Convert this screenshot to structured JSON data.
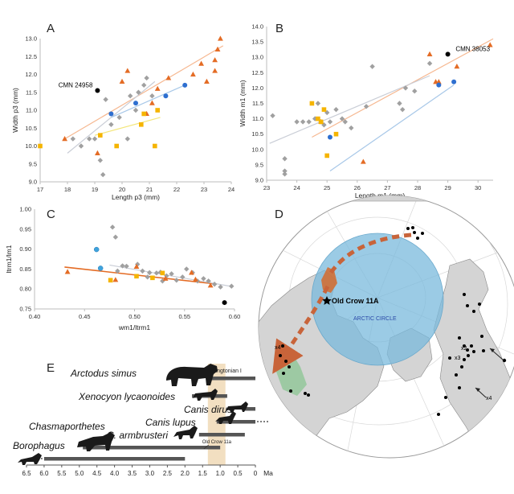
{
  "panels": {
    "A": "A",
    "B": "B",
    "C": "C",
    "D": "D",
    "E": "E"
  },
  "colors": {
    "grey": "#a0a0a0",
    "orange": "#e46c25",
    "yellow": "#f5b400",
    "blue": "#2e6fd0",
    "lightblue": "#3fa3dc",
    "black": "#000000",
    "trend_orange": "#f6b891",
    "trend_grey": "#c9cdd6",
    "trend_yellow": "#f3e67a",
    "trend_blue": "#a8c8e8",
    "bar": "#555555",
    "band": "#f2dfc1",
    "arctic": "#79b9dc",
    "land": "#d4d4d4",
    "ocean": "#ffffff",
    "green_region": "#93c79a",
    "arrow": "#c8643a"
  },
  "chart_data": [
    {
      "id": "A",
      "type": "scatter",
      "title": "A",
      "xlabel": "Length p3 (mm)",
      "ylabel": "Width p3 (mm)",
      "xlim": [
        17,
        24
      ],
      "ylim": [
        9.0,
        13.0
      ],
      "xticks": [
        "17",
        "18",
        "19",
        "20",
        "21",
        "22",
        "23",
        "24"
      ],
      "yticks": [
        "9.0",
        "9.5",
        "10.0",
        "10.5",
        "11.0",
        "11.5",
        "12.0",
        "12.5",
        "13.0"
      ],
      "annotations": [
        {
          "text": "CMN 24958",
          "x": 19.1,
          "y": 11.55
        }
      ],
      "series": [
        {
          "name": "grey",
          "marker": "diamond",
          "color": "grey",
          "points": [
            [
              18.2,
              10.2
            ],
            [
              18.5,
              10.0
            ],
            [
              18.8,
              10.2
            ],
            [
              19.0,
              10.2
            ],
            [
              19.2,
              9.6
            ],
            [
              19.3,
              9.2
            ],
            [
              19.4,
              11.3
            ],
            [
              19.6,
              10.6
            ],
            [
              19.9,
              10.8
            ],
            [
              20.3,
              11.4
            ],
            [
              20.5,
              11.0
            ],
            [
              20.6,
              11.5
            ],
            [
              20.8,
              11.7
            ],
            [
              20.9,
              11.9
            ],
            [
              21.1,
              11.4
            ],
            [
              20.2,
              10.2
            ]
          ]
        },
        {
          "name": "orange",
          "marker": "triangle",
          "color": "orange",
          "points": [
            [
              17.9,
              10.2
            ],
            [
              19.1,
              9.8
            ],
            [
              20.0,
              11.8
            ],
            [
              20.2,
              12.1
            ],
            [
              20.9,
              10.9
            ],
            [
              21.3,
              11.6
            ],
            [
              21.7,
              11.9
            ],
            [
              22.6,
              12.0
            ],
            [
              22.9,
              12.3
            ],
            [
              23.1,
              11.8
            ],
            [
              23.4,
              12.4
            ],
            [
              23.5,
              12.7
            ],
            [
              23.4,
              12.1
            ],
            [
              23.6,
              13.0
            ],
            [
              21.1,
              11.2
            ]
          ]
        },
        {
          "name": "yellow",
          "marker": "square",
          "color": "yellow",
          "points": [
            [
              17.0,
              10.0
            ],
            [
              19.2,
              10.3
            ],
            [
              19.8,
              10.0
            ],
            [
              20.7,
              10.6
            ],
            [
              20.8,
              10.9
            ],
            [
              21.2,
              10.0
            ],
            [
              21.3,
              11.0
            ]
          ]
        },
        {
          "name": "blue",
          "marker": "circle",
          "color": "blue",
          "points": [
            [
              19.6,
              10.9
            ],
            [
              20.5,
              11.2
            ],
            [
              21.6,
              11.4
            ],
            [
              22.3,
              11.7
            ]
          ]
        },
        {
          "name": "black",
          "marker": "circle",
          "color": "black",
          "points": [
            [
              19.1,
              11.55
            ]
          ]
        }
      ],
      "trendlines": [
        {
          "color": "trend_orange",
          "from": [
            17.9,
            10.2
          ],
          "to": [
            23.7,
            12.8
          ]
        },
        {
          "color": "trend_grey",
          "from": [
            18.0,
            9.8
          ],
          "to": [
            21.2,
            11.8
          ]
        },
        {
          "color": "trend_yellow",
          "from": [
            19.0,
            10.3
          ],
          "to": [
            21.4,
            10.8
          ]
        },
        {
          "color": "trend_blue",
          "from": [
            19.6,
            10.8
          ],
          "to": [
            22.3,
            11.7
          ]
        }
      ]
    },
    {
      "id": "B",
      "type": "scatter",
      "title": "B",
      "xlabel": "Length m1 (mm)",
      "ylabel": "Width m1 (mm)",
      "xlim": [
        23,
        30.5
      ],
      "ylim": [
        9.0,
        14.0
      ],
      "xticks": [
        "23",
        "24",
        "25",
        "26",
        "27",
        "28",
        "29",
        "30"
      ],
      "yticks": [
        "9.0",
        "9.5",
        "10.0",
        "10.5",
        "11.0",
        "11.5",
        "12.0",
        "12.5",
        "13.0",
        "13.5",
        "14.0"
      ],
      "annotations": [
        {
          "text": "CMN 38053",
          "x": 29.1,
          "y": 13.1
        }
      ],
      "series": [
        {
          "name": "grey",
          "marker": "diamond",
          "color": "grey",
          "points": [
            [
              23.2,
              11.1
            ],
            [
              23.6,
              9.7
            ],
            [
              23.6,
              9.3
            ],
            [
              23.6,
              9.2
            ],
            [
              24.0,
              10.9
            ],
            [
              24.2,
              10.9
            ],
            [
              24.4,
              10.9
            ],
            [
              24.6,
              11.0
            ],
            [
              24.7,
              11.5
            ],
            [
              24.8,
              10.9
            ],
            [
              24.9,
              10.8
            ],
            [
              25.0,
              11.2
            ],
            [
              25.1,
              10.9
            ],
            [
              25.3,
              11.3
            ],
            [
              25.5,
              11.0
            ],
            [
              25.6,
              10.9
            ],
            [
              25.8,
              10.7
            ],
            [
              26.3,
              11.4
            ],
            [
              26.5,
              12.7
            ],
            [
              27.4,
              11.5
            ],
            [
              27.5,
              11.3
            ],
            [
              27.6,
              12.0
            ],
            [
              27.9,
              11.9
            ],
            [
              28.4,
              12.8
            ]
          ]
        },
        {
          "name": "orange",
          "marker": "triangle",
          "color": "orange",
          "points": [
            [
              24.8,
              10.9
            ],
            [
              26.2,
              9.6
            ],
            [
              28.4,
              13.1
            ],
            [
              28.6,
              12.2
            ],
            [
              28.7,
              12.2
            ],
            [
              29.3,
              12.7
            ],
            [
              30.4,
              13.4
            ]
          ]
        },
        {
          "name": "yellow",
          "marker": "square",
          "color": "yellow",
          "points": [
            [
              24.5,
              11.5
            ],
            [
              24.7,
              11.0
            ],
            [
              24.8,
              10.9
            ],
            [
              24.9,
              11.3
            ],
            [
              25.0,
              9.8
            ],
            [
              25.3,
              10.5
            ]
          ]
        },
        {
          "name": "blue",
          "marker": "circle",
          "color": "blue",
          "points": [
            [
              25.1,
              10.4
            ],
            [
              28.7,
              12.1
            ],
            [
              29.2,
              12.2
            ]
          ]
        },
        {
          "name": "black",
          "marker": "circle",
          "color": "black",
          "points": [
            [
              29.0,
              13.1
            ]
          ]
        }
      ],
      "trendlines": [
        {
          "color": "trend_orange",
          "from": [
            24.5,
            10.4
          ],
          "to": [
            30.5,
            13.6
          ]
        },
        {
          "color": "trend_grey",
          "from": [
            23.1,
            10.2
          ],
          "to": [
            28.4,
            12.4
          ]
        },
        {
          "color": "trend_blue",
          "from": [
            25.1,
            9.3
          ],
          "to": [
            29.2,
            12.1
          ]
        }
      ]
    },
    {
      "id": "C",
      "type": "scatter",
      "title": "C",
      "xlabel": "wm1/ltrm1",
      "ylabel": "ltrm1/lm1",
      "xlim": [
        0.4,
        0.6
      ],
      "ylim": [
        0.75,
        1.0
      ],
      "xticks": [
        "0.40",
        "0.45",
        "0.50",
        "0.55",
        "0.60"
      ],
      "yticks": [
        "0.75",
        "0.80",
        "0.85",
        "0.90",
        "0.95",
        "1.00"
      ],
      "series": [
        {
          "name": "grey",
          "marker": "diamond",
          "color": "grey",
          "points": [
            [
              0.478,
              0.955
            ],
            [
              0.481,
              0.93
            ],
            [
              0.483,
              0.845
            ],
            [
              0.488,
              0.858
            ],
            [
              0.492,
              0.857
            ],
            [
              0.503,
              0.862
            ],
            [
              0.508,
              0.845
            ],
            [
              0.515,
              0.841
            ],
            [
              0.522,
              0.84
            ],
            [
              0.526,
              0.842
            ],
            [
              0.532,
              0.833
            ],
            [
              0.537,
              0.838
            ],
            [
              0.542,
              0.822
            ],
            [
              0.548,
              0.83
            ],
            [
              0.552,
              0.85
            ],
            [
              0.558,
              0.841
            ],
            [
              0.563,
              0.82
            ],
            [
              0.569,
              0.826
            ],
            [
              0.574,
              0.82
            ],
            [
              0.58,
              0.812
            ],
            [
              0.586,
              0.805
            ],
            [
              0.597,
              0.807
            ],
            [
              0.513,
              0.83
            ],
            [
              0.528,
              0.82
            ]
          ]
        },
        {
          "name": "orange",
          "marker": "triangle",
          "color": "orange",
          "points": [
            [
              0.433,
              0.843
            ],
            [
              0.481,
              0.823
            ],
            [
              0.502,
              0.856
            ],
            [
              0.531,
              0.826
            ],
            [
              0.557,
              0.841
            ],
            [
              0.561,
              0.824
            ],
            [
              0.576,
              0.809
            ]
          ]
        },
        {
          "name": "yellow",
          "marker": "square",
          "color": "yellow",
          "points": [
            [
              0.476,
              0.822
            ],
            [
              0.502,
              0.832
            ],
            [
              0.518,
              0.828
            ],
            [
              0.528,
              0.84
            ]
          ]
        },
        {
          "name": "lightblue",
          "marker": "circle",
          "color": "lightblue",
          "points": [
            [
              0.462,
              0.899
            ],
            [
              0.466,
              0.852
            ]
          ]
        },
        {
          "name": "black",
          "marker": "circle",
          "color": "black",
          "points": [
            [
              0.59,
              0.766
            ]
          ]
        }
      ],
      "trendlines": [
        {
          "color": "orange",
          "from": [
            0.43,
            0.855
          ],
          "to": [
            0.58,
            0.813
          ]
        },
        {
          "color": "trend_grey",
          "from": [
            0.475,
            0.86
          ],
          "to": [
            0.598,
            0.806
          ]
        }
      ]
    },
    {
      "id": "E",
      "type": "timeline",
      "xlabel": "Ma",
      "xlim": [
        6.5,
        0
      ],
      "xticks": [
        "6.5",
        "6.0",
        "5.5",
        "5.0",
        "4.5",
        "4.0",
        "3.5",
        "3.0",
        "2.5",
        "2.0",
        "1.5",
        "1.0",
        "0.5",
        "0"
      ],
      "band": {
        "label": "Irvingtonian I",
        "start": 1.35,
        "end": 0.85
      },
      "site_label": "Old Crow 11a",
      "taxa": [
        {
          "name": "Arctodus simus",
          "start": 1.3,
          "end": 0.0,
          "continues": false
        },
        {
          "name": "Xenocyon lycaonoides",
          "start": 1.8,
          "end": 0.8,
          "continues": false
        },
        {
          "name": "Canis dirus",
          "start": 0.3,
          "end": 0.0,
          "continues": false
        },
        {
          "name": "Canis lupus",
          "start": 1.1,
          "end": 0.0,
          "continues": true
        },
        {
          "name": "C. armbrusteri",
          "start": 1.6,
          "end": 0.3,
          "continues": false
        },
        {
          "name": "Chasmaporthetes",
          "start": 4.9,
          "end": 1.0,
          "continues": false
        },
        {
          "name": "Borophagus",
          "start": 6.0,
          "end": 2.0,
          "continues": true
        }
      ]
    }
  ],
  "map": {
    "site_label": "Old Crow 11A",
    "circle_label": "ARCTIC CIRCLE",
    "counts": [
      "x4",
      "x3",
      "x2",
      "x4"
    ]
  }
}
